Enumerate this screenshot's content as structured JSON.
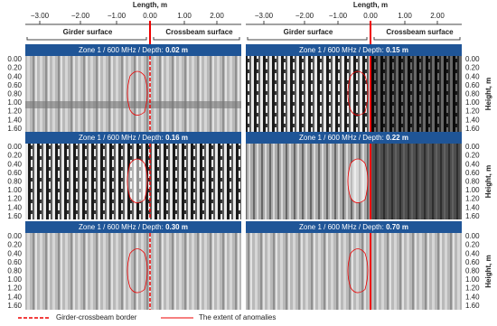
{
  "axis_top": {
    "title": "Length, m",
    "ticks": [
      "−3.00",
      "−2.00",
      "−1.00",
      "0.00",
      "1.00",
      "2.00"
    ]
  },
  "axis_right": {
    "title": "Height, m"
  },
  "y_ticks": [
    "0.00",
    "0.20",
    "0.40",
    "0.60",
    "0.80",
    "1.00",
    "1.20",
    "1.40",
    "1.60"
  ],
  "surface_labels": {
    "girder": "Girder surface",
    "crossbeam": "Crossbeam surface"
  },
  "panels": [
    {
      "title": "Zone 1 / 600 MHz / Depth: ",
      "depth": "0.02 m"
    },
    {
      "title": "Zone 1 / 600 MHz / Depth: ",
      "depth": "0.15 m"
    },
    {
      "title": "Zone 1 / 600 MHz / Depth: ",
      "depth": "0.16 m"
    },
    {
      "title": "Zone 1 / 600 MHz / Depth: ",
      "depth": "0.22 m"
    },
    {
      "title": "Zone 1 / 600 MHz / Depth: ",
      "depth": "0.30 m"
    },
    {
      "title": "Zone 1 / 600 MHz / Depth: ",
      "depth": "0.70 m"
    }
  ],
  "legend": {
    "border": "Girder-crossbeam border",
    "anomalies": "The extent of anomalies"
  }
}
